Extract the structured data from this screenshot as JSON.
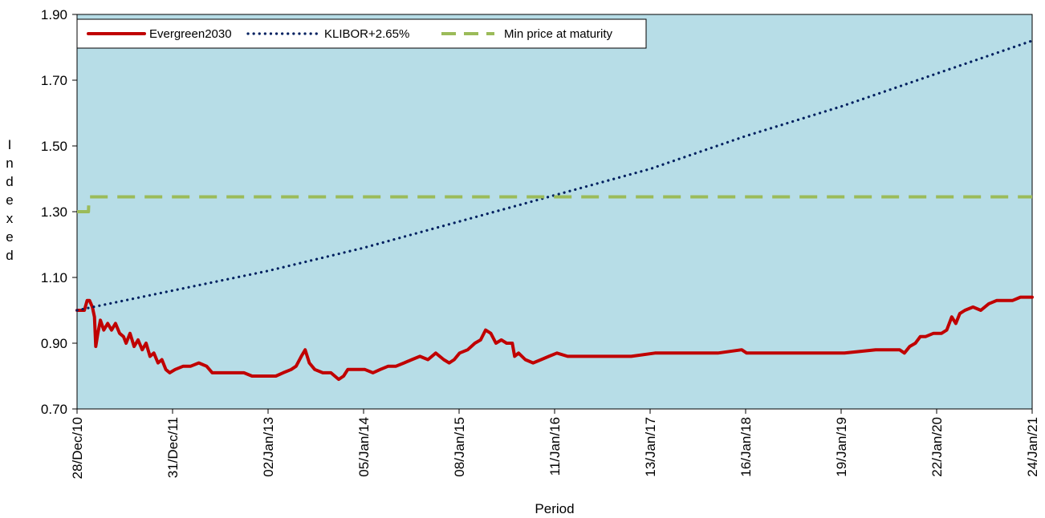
{
  "chart_data": {
    "type": "line",
    "title": "",
    "xlabel": "Period",
    "ylabel": "Indexed",
    "ylim": [
      0.7,
      1.9
    ],
    "yticks": [
      "0.70",
      "0.90",
      "1.10",
      "1.30",
      "1.50",
      "1.70",
      "1.90"
    ],
    "xlim": [
      "2010-12-28",
      "2021-01-24"
    ],
    "xticks": [
      {
        "date": "2010-12-28",
        "label": "28/Dec/10"
      },
      {
        "date": "2011-12-31",
        "label": "31/Dec/11"
      },
      {
        "date": "2013-01-02",
        "label": "02/Jan/13"
      },
      {
        "date": "2014-01-05",
        "label": "05/Jan/14"
      },
      {
        "date": "2015-01-08",
        "label": "08/Jan/15"
      },
      {
        "date": "2016-01-11",
        "label": "11/Jan/16"
      },
      {
        "date": "2017-01-13",
        "label": "13/Jan/17"
      },
      {
        "date": "2018-01-16",
        "label": "16/Jan/18"
      },
      {
        "date": "2019-01-19",
        "label": "19/Jan/19"
      },
      {
        "date": "2020-01-22",
        "label": "22/Jan/20"
      },
      {
        "date": "2021-01-24",
        "label": "24/Jan/21"
      }
    ],
    "grid": false,
    "legend_position": "top-left",
    "plot_background": "#b7dde7",
    "series": [
      {
        "name": "Evergreen2030",
        "color": "#c00000",
        "style": "solid",
        "points": [
          [
            "2010-12-28",
            1.0
          ],
          [
            "2011-01-10",
            1.0
          ],
          [
            "2011-01-25",
            1.0
          ],
          [
            "2011-02-05",
            1.03
          ],
          [
            "2011-02-14",
            1.03
          ],
          [
            "2011-02-25",
            1.01
          ],
          [
            "2011-03-05",
            0.98
          ],
          [
            "2011-03-10",
            0.89
          ],
          [
            "2011-03-18",
            0.93
          ],
          [
            "2011-03-28",
            0.97
          ],
          [
            "2011-04-10",
            0.94
          ],
          [
            "2011-04-25",
            0.96
          ],
          [
            "2011-05-10",
            0.94
          ],
          [
            "2011-05-25",
            0.96
          ],
          [
            "2011-06-10",
            0.93
          ],
          [
            "2011-06-25",
            0.92
          ],
          [
            "2011-07-05",
            0.9
          ],
          [
            "2011-07-20",
            0.93
          ],
          [
            "2011-08-05",
            0.89
          ],
          [
            "2011-08-20",
            0.91
          ],
          [
            "2011-09-05",
            0.88
          ],
          [
            "2011-09-20",
            0.9
          ],
          [
            "2011-10-05",
            0.86
          ],
          [
            "2011-10-20",
            0.87
          ],
          [
            "2011-11-05",
            0.84
          ],
          [
            "2011-11-20",
            0.85
          ],
          [
            "2011-12-05",
            0.82
          ],
          [
            "2011-12-20",
            0.81
          ],
          [
            "2012-01-10",
            0.82
          ],
          [
            "2012-02-10",
            0.83
          ],
          [
            "2012-03-10",
            0.83
          ],
          [
            "2012-04-10",
            0.84
          ],
          [
            "2012-05-10",
            0.83
          ],
          [
            "2012-06-01",
            0.81
          ],
          [
            "2012-07-01",
            0.81
          ],
          [
            "2012-08-01",
            0.81
          ],
          [
            "2012-09-01",
            0.81
          ],
          [
            "2012-10-01",
            0.81
          ],
          [
            "2012-11-01",
            0.8
          ],
          [
            "2012-12-01",
            0.8
          ],
          [
            "2013-01-01",
            0.8
          ],
          [
            "2013-02-01",
            0.8
          ],
          [
            "2013-03-01",
            0.81
          ],
          [
            "2013-04-01",
            0.82
          ],
          [
            "2013-04-20",
            0.83
          ],
          [
            "2013-05-10",
            0.86
          ],
          [
            "2013-05-25",
            0.88
          ],
          [
            "2013-06-10",
            0.84
          ],
          [
            "2013-07-01",
            0.82
          ],
          [
            "2013-08-01",
            0.81
          ],
          [
            "2013-09-01",
            0.81
          ],
          [
            "2013-10-01",
            0.79
          ],
          [
            "2013-10-20",
            0.8
          ],
          [
            "2013-11-05",
            0.82
          ],
          [
            "2013-12-10",
            0.82
          ],
          [
            "2014-01-10",
            0.82
          ],
          [
            "2014-02-10",
            0.81
          ],
          [
            "2014-03-10",
            0.82
          ],
          [
            "2014-04-10",
            0.83
          ],
          [
            "2014-05-10",
            0.83
          ],
          [
            "2014-06-10",
            0.84
          ],
          [
            "2014-07-10",
            0.85
          ],
          [
            "2014-08-10",
            0.86
          ],
          [
            "2014-09-10",
            0.85
          ],
          [
            "2014-10-10",
            0.87
          ],
          [
            "2014-11-10",
            0.85
          ],
          [
            "2014-12-01",
            0.84
          ],
          [
            "2014-12-20",
            0.85
          ],
          [
            "2015-01-10",
            0.87
          ],
          [
            "2015-02-10",
            0.88
          ],
          [
            "2015-03-10",
            0.9
          ],
          [
            "2015-04-01",
            0.91
          ],
          [
            "2015-04-20",
            0.94
          ],
          [
            "2015-05-10",
            0.93
          ],
          [
            "2015-05-30",
            0.9
          ],
          [
            "2015-06-20",
            0.91
          ],
          [
            "2015-07-10",
            0.9
          ],
          [
            "2015-08-01",
            0.9
          ],
          [
            "2015-08-10",
            0.86
          ],
          [
            "2015-08-25",
            0.87
          ],
          [
            "2015-09-20",
            0.85
          ],
          [
            "2015-10-20",
            0.84
          ],
          [
            "2015-11-20",
            0.85
          ],
          [
            "2015-12-20",
            0.86
          ],
          [
            "2016-01-20",
            0.87
          ],
          [
            "2016-03-01",
            0.86
          ],
          [
            "2016-05-01",
            0.86
          ],
          [
            "2016-08-01",
            0.86
          ],
          [
            "2016-11-01",
            0.86
          ],
          [
            "2017-02-01",
            0.87
          ],
          [
            "2017-06-01",
            0.87
          ],
          [
            "2017-10-01",
            0.87
          ],
          [
            "2018-01-01",
            0.88
          ],
          [
            "2018-01-20",
            0.87
          ],
          [
            "2018-06-01",
            0.87
          ],
          [
            "2018-10-01",
            0.87
          ],
          [
            "2019-02-01",
            0.87
          ],
          [
            "2019-06-01",
            0.88
          ],
          [
            "2019-09-01",
            0.88
          ],
          [
            "2019-09-20",
            0.87
          ],
          [
            "2019-10-10",
            0.89
          ],
          [
            "2019-11-01",
            0.9
          ],
          [
            "2019-11-20",
            0.92
          ],
          [
            "2019-12-10",
            0.92
          ],
          [
            "2020-01-10",
            0.93
          ],
          [
            "2020-02-10",
            0.93
          ],
          [
            "2020-03-01",
            0.94
          ],
          [
            "2020-03-20",
            0.98
          ],
          [
            "2020-04-05",
            0.96
          ],
          [
            "2020-04-20",
            0.99
          ],
          [
            "2020-05-10",
            1.0
          ],
          [
            "2020-06-10",
            1.01
          ],
          [
            "2020-07-10",
            1.0
          ],
          [
            "2020-08-10",
            1.02
          ],
          [
            "2020-09-10",
            1.03
          ],
          [
            "2020-10-10",
            1.03
          ],
          [
            "2020-11-10",
            1.03
          ],
          [
            "2020-12-10",
            1.04
          ],
          [
            "2021-01-10",
            1.04
          ],
          [
            "2021-01-24",
            1.04
          ]
        ]
      },
      {
        "name": "KLIBOR+2.65%",
        "color": "#002060",
        "style": "dotted",
        "points": [
          [
            "2010-12-28",
            1.0
          ],
          [
            "2011-12-31",
            1.06
          ],
          [
            "2013-01-02",
            1.12
          ],
          [
            "2014-01-05",
            1.19
          ],
          [
            "2015-01-08",
            1.27
          ],
          [
            "2016-01-11",
            1.35
          ],
          [
            "2017-01-13",
            1.43
          ],
          [
            "2018-01-16",
            1.53
          ],
          [
            "2019-01-19",
            1.62
          ],
          [
            "2020-01-22",
            1.72
          ],
          [
            "2021-01-24",
            1.82
          ]
        ]
      },
      {
        "name": "Min price at maturity",
        "color": "#9bbb59",
        "style": "dashed",
        "points": [
          [
            "2010-12-28",
            1.3
          ],
          [
            "2011-02-10",
            1.3
          ],
          [
            "2011-02-12",
            1.345
          ],
          [
            "2021-01-24",
            1.345
          ]
        ]
      }
    ]
  }
}
